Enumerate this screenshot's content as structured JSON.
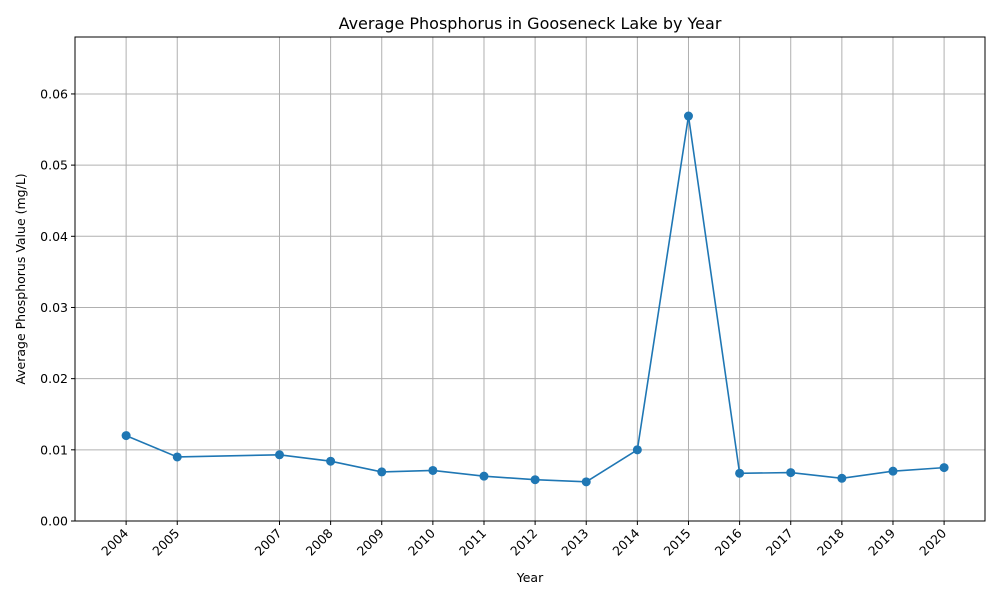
{
  "chart_data": {
    "type": "line",
    "title": "Average Phosphorus in Gooseneck Lake by Year",
    "xlabel": "Year",
    "ylabel": "Average Phosphorus Value (mg/L)",
    "x": [
      2004,
      2005,
      2007,
      2008,
      2009,
      2010,
      2011,
      2012,
      2013,
      2014,
      2015,
      2016,
      2017,
      2018,
      2019,
      2020
    ],
    "series": [
      {
        "values": [
          0.012,
          0.009,
          0.0093,
          0.0084,
          0.0069,
          0.0071,
          0.0063,
          0.0058,
          0.0055,
          0.01,
          0.0569,
          0.0067,
          0.0068,
          0.006,
          0.007,
          0.0075
        ],
        "color": "#1f77b4",
        "marker": "circle"
      }
    ],
    "xticks": [
      "2004",
      "2005",
      "2007",
      "2008",
      "2009",
      "2010",
      "2011",
      "2012",
      "2013",
      "2014",
      "2015",
      "2016",
      "2017",
      "2018",
      "2019",
      "2020"
    ],
    "yticks": [
      "0.00",
      "0.01",
      "0.02",
      "0.03",
      "0.04",
      "0.05",
      "0.06"
    ],
    "xlim": [
      2003.0,
      2020.8
    ],
    "ylim": [
      0,
      0.068
    ],
    "grid": true,
    "legend": "none"
  }
}
